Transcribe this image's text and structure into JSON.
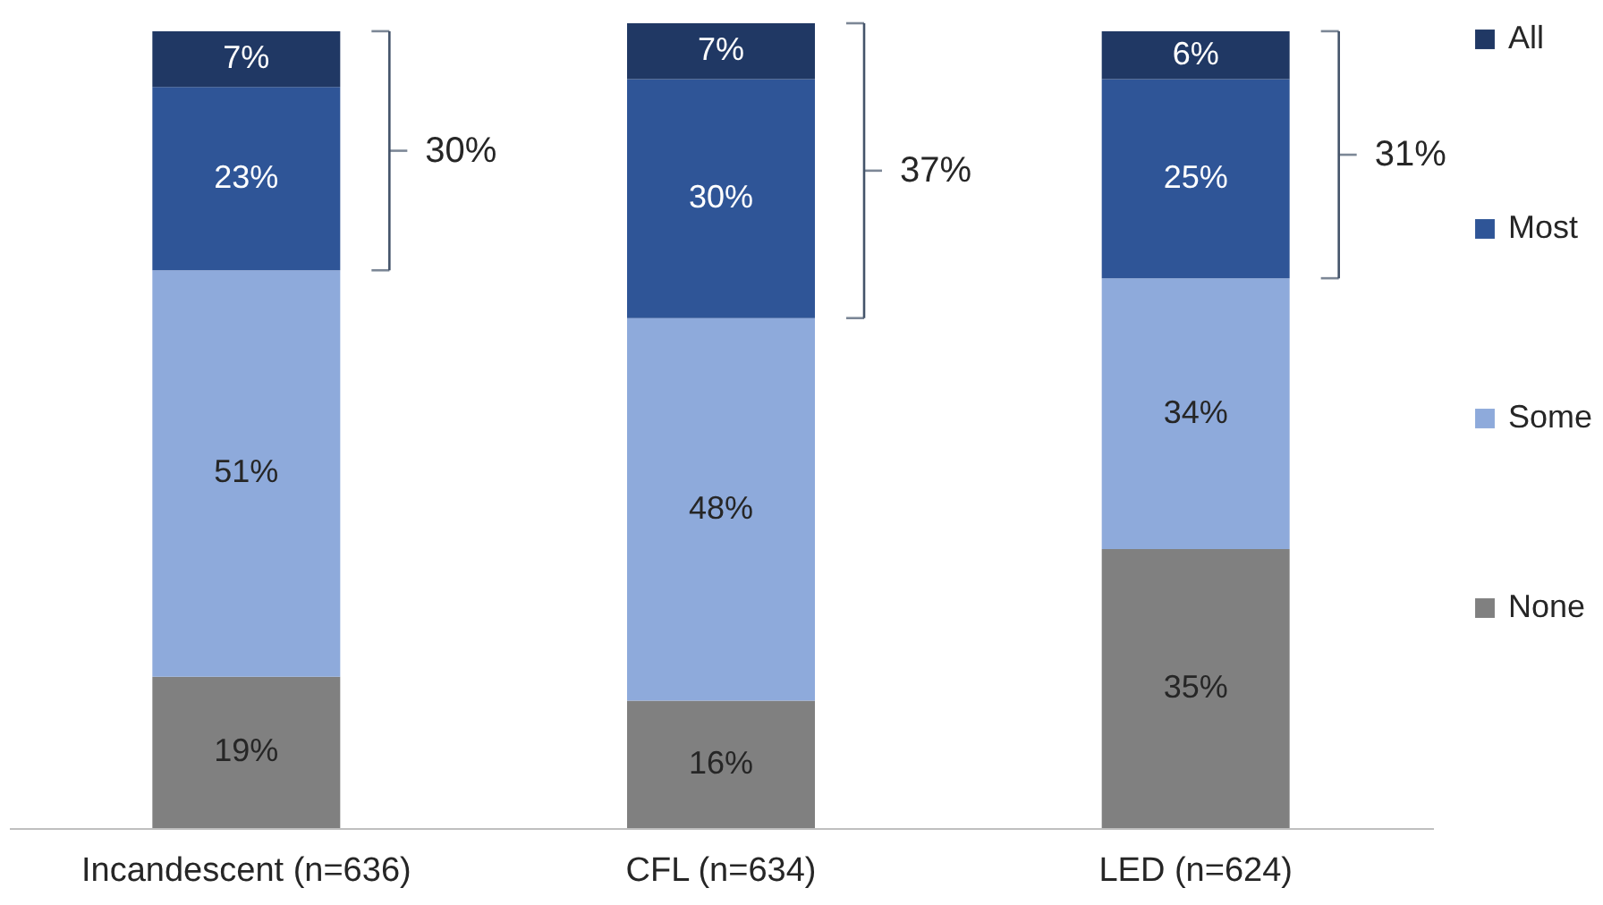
{
  "chart_data": {
    "type": "bar",
    "stacked": true,
    "legend": "right",
    "categories": [
      "Incandescent (n=636)",
      "CFL (n=634)",
      "LED (n=624)"
    ],
    "series": [
      {
        "name": "None",
        "color": "#808080",
        "values": [
          19,
          16,
          35
        ],
        "value_labels": [
          "19%",
          "16%",
          "35%"
        ]
      },
      {
        "name": "Some",
        "color": "#8eaadb",
        "values": [
          51,
          48,
          34
        ],
        "value_labels": [
          "51%",
          "48%",
          "34%"
        ]
      },
      {
        "name": "Most",
        "color": "#2f5597",
        "values": [
          23,
          30,
          25
        ],
        "value_labels": [
          "23%",
          "30%",
          "25%"
        ]
      },
      {
        "name": "All",
        "color": "#203864",
        "values": [
          7,
          7,
          6
        ],
        "value_labels": [
          "7%",
          "7%",
          "6%"
        ]
      }
    ],
    "annotations": [
      "30%",
      "37%",
      "31%"
    ]
  }
}
